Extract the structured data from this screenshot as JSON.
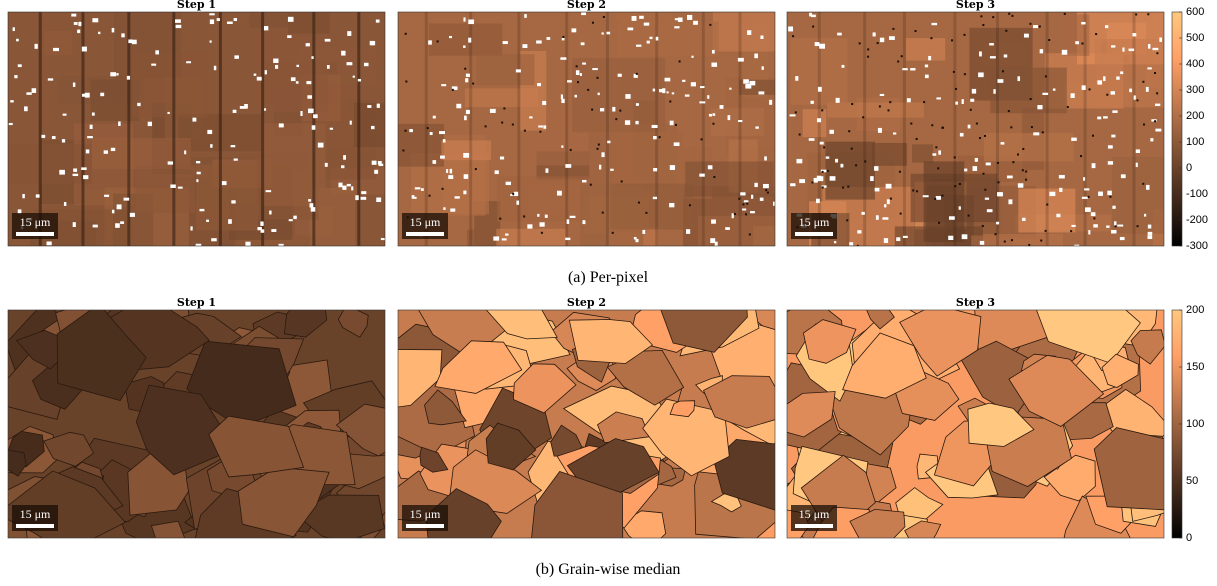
{
  "figure": {
    "rows": [
      {
        "caption": "(a) Per-pixel",
        "panels": [
          {
            "title": "Step 1",
            "scale_bar": "15 μm"
          },
          {
            "title": "Step 2",
            "scale_bar": "15 μm"
          },
          {
            "title": "Step 3",
            "scale_bar": "15 μm"
          }
        ],
        "colorbar": {
          "range": [
            -300,
            600
          ],
          "ticks": [
            600,
            500,
            400,
            300,
            200,
            100,
            0,
            -100,
            -200,
            -300
          ]
        }
      },
      {
        "caption": "(b) Grain-wise median",
        "panels": [
          {
            "title": "Step 1",
            "scale_bar": "15 μm"
          },
          {
            "title": "Step 2",
            "scale_bar": "15 μm"
          },
          {
            "title": "Step 3",
            "scale_bar": "15 μm"
          }
        ],
        "colorbar": {
          "range": [
            0,
            200
          ],
          "ticks": [
            200,
            150,
            100,
            50,
            0
          ]
        }
      }
    ]
  }
}
